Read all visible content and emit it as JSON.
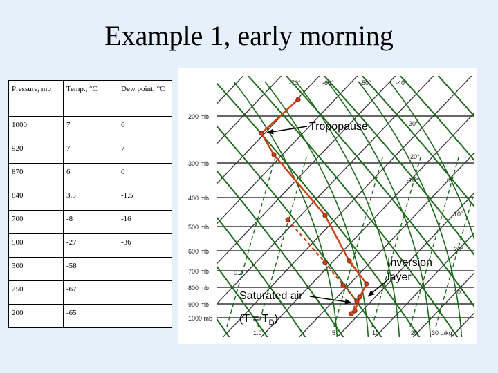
{
  "title": "Example 1, early morning",
  "table": {
    "headers": [
      "Pressure, mb",
      "Temp., °C",
      "Dew point, °C"
    ],
    "rows": [
      [
        "1000",
        "7",
        "6"
      ],
      [
        "920",
        "7",
        "7"
      ],
      [
        "870",
        "6",
        "0"
      ],
      [
        "840",
        "3.5",
        "-1.5"
      ],
      [
        "700",
        "-8",
        "-16"
      ],
      [
        "500",
        "-27",
        "-36"
      ],
      [
        "300",
        "-58",
        ""
      ],
      [
        "250",
        "-67",
        ""
      ],
      [
        "200",
        "-65",
        ""
      ]
    ]
  },
  "diagram": {
    "pressure_labels": [
      "200 mb",
      "300 mb",
      "400 mb",
      "500 mb",
      "600 mb",
      "700 mb",
      "800 mb",
      "900 mb",
      "1000 mb"
    ],
    "top_temp_labels": [
      "-70°",
      "-60°",
      "-50°",
      "-40°"
    ],
    "right_temp_labels": [
      "-30°",
      "-20°",
      "-10°",
      "0°",
      "10°",
      "20°",
      "30°"
    ],
    "mixing_ratio_labels": [
      "0.2",
      "1.0",
      "5",
      "10",
      "20",
      "30 g/kg"
    ],
    "colors": {
      "temperature": "#d04010",
      "dewpoint": "#d04010",
      "isotherm": "#2a7a2a",
      "adiabat": "#1a6a1a",
      "grid": "#333333"
    }
  },
  "annotations": {
    "tropopause": "Tropopause",
    "inversion": "Inversion layer",
    "saturated": "Saturated air",
    "td_relation": "(T = T",
    "td_sub": "D",
    "td_close": ")"
  }
}
